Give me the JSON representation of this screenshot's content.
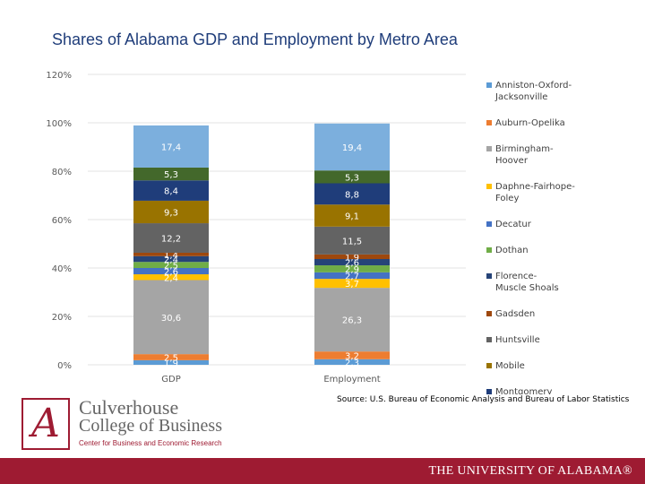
{
  "chart_data": {
    "type": "bar",
    "stacked": true,
    "title": "Shares of Alabama GDP and Employment by Metro Area",
    "categories": [
      "GDP",
      "Employment"
    ],
    "ylim": [
      0,
      120
    ],
    "yticks": [
      "0%",
      "20%",
      "40%",
      "60%",
      "80%",
      "100%",
      "120%"
    ],
    "grid": true,
    "legend_position": "right",
    "series": [
      {
        "name": "Anniston-Oxford-Jacksonville",
        "color": "#5b9bd5",
        "values": [
          1.9,
          2.3
        ],
        "labels": [
          "1,9",
          "2,3"
        ]
      },
      {
        "name": "Auburn-Opelika",
        "color": "#ed7d31",
        "values": [
          2.5,
          3.2
        ],
        "labels": [
          "2,5",
          "3,2"
        ]
      },
      {
        "name": "Birmingham-Hoover",
        "color": "#a5a5a5",
        "values": [
          30.6,
          26.3
        ],
        "labels": [
          "30,6",
          "26,3"
        ]
      },
      {
        "name": "Daphne-Fairhope-Foley",
        "color": "#ffc000",
        "values": [
          2.4,
          3.7
        ],
        "labels": [
          "2,4",
          "3,7"
        ]
      },
      {
        "name": "Decatur",
        "color": "#4472c4",
        "values": [
          2.6,
          2.7
        ],
        "labels": [
          "2,6",
          "2,7"
        ]
      },
      {
        "name": "Dothan",
        "color": "#70ad47",
        "values": [
          2.5,
          2.9
        ],
        "labels": [
          "2,5",
          "2,9"
        ]
      },
      {
        "name": "Florence-Muscle Shoals",
        "color": "#264478",
        "values": [
          2.4,
          2.6
        ],
        "labels": [
          "2,4",
          "2,6"
        ]
      },
      {
        "name": "Gadsden",
        "color": "#9e480e",
        "values": [
          1.4,
          1.9
        ],
        "labels": [
          "1,4",
          "1,9"
        ]
      },
      {
        "name": "Huntsville",
        "color": "#636363",
        "values": [
          12.2,
          11.5
        ],
        "labels": [
          "12,2",
          "11,5"
        ]
      },
      {
        "name": "Mobile",
        "color": "#997300",
        "values": [
          9.3,
          9.1
        ],
        "labels": [
          "9,3",
          "9,1"
        ]
      },
      {
        "name": "Montgomery",
        "color": "#1f3d7a",
        "values": [
          8.4,
          8.8
        ],
        "labels": [
          "8,4",
          "8,8"
        ]
      },
      {
        "name": "",
        "color": "#43682b",
        "values": [
          5.3,
          5.3
        ],
        "labels": [
          "5,3",
          "5,3"
        ]
      },
      {
        "name": "",
        "color": "#7cafdd",
        "values": [
          17.4,
          19.4
        ],
        "labels": [
          "17,4",
          "19,4"
        ]
      }
    ]
  },
  "source": "Source: U.S. Bureau of Economic Analysis and Bureau of Labor Statistics",
  "branding": {
    "logo_letter": "A",
    "college_line1": "Culverhouse",
    "college_line2": "College of Business",
    "center": "Center for Business and Economic Research",
    "footer": "THE UNIVERSITY OF ALABAMA®"
  }
}
